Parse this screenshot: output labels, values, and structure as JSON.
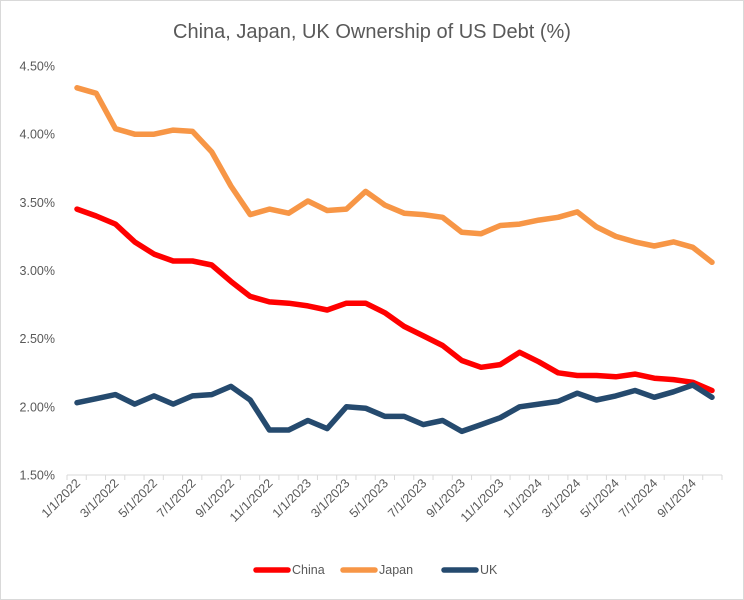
{
  "chart_data": {
    "type": "line",
    "title": "China, Japan, UK Ownership of US Debt (%)",
    "xlabel": "",
    "ylabel": "",
    "ylim": [
      0.015,
      0.045
    ],
    "y_ticks": [
      "1.50%",
      "2.00%",
      "2.50%",
      "3.00%",
      "3.50%",
      "4.00%",
      "4.50%"
    ],
    "x": [
      "1/1/2022",
      "2/1/2022",
      "3/1/2022",
      "4/1/2022",
      "5/1/2022",
      "6/1/2022",
      "7/1/2022",
      "8/1/2022",
      "9/1/2022",
      "10/1/2022",
      "11/1/2022",
      "12/1/2022",
      "1/1/2023",
      "2/1/2023",
      "3/1/2023",
      "4/1/2023",
      "5/1/2023",
      "6/1/2023",
      "7/1/2023",
      "8/1/2023",
      "9/1/2023",
      "10/1/2023",
      "11/1/2023",
      "12/1/2023",
      "1/1/2024",
      "2/1/2024",
      "3/1/2024",
      "4/1/2024",
      "5/1/2024",
      "6/1/2024",
      "7/1/2024",
      "8/1/2024",
      "9/1/2024",
      "10/1/2024"
    ],
    "x_tick_labels": [
      "1/1/2022",
      "3/1/2022",
      "5/1/2022",
      "7/1/2022",
      "9/1/2022",
      "11/1/2022",
      "1/1/2023",
      "3/1/2023",
      "5/1/2023",
      "7/1/2023",
      "9/1/2023",
      "11/1/2023",
      "1/1/2024",
      "3/1/2024",
      "5/1/2024",
      "7/1/2024",
      "9/1/2024"
    ],
    "series": [
      {
        "name": "China",
        "color": "#ff0000",
        "values": [
          0.0345,
          0.034,
          0.0334,
          0.0321,
          0.0312,
          0.0307,
          0.0307,
          0.0304,
          0.0292,
          0.0281,
          0.0277,
          0.0276,
          0.0274,
          0.0271,
          0.0276,
          0.0276,
          0.0269,
          0.0259,
          0.0252,
          0.0245,
          0.0234,
          0.0229,
          0.0231,
          0.024,
          0.0233,
          0.0225,
          0.0223,
          0.0223,
          0.0222,
          0.0224,
          0.0221,
          0.022,
          0.0218,
          0.0212
        ]
      },
      {
        "name": "Japan",
        "color": "#f79646",
        "values": [
          0.0434,
          0.043,
          0.0404,
          0.04,
          0.04,
          0.0403,
          0.0402,
          0.0387,
          0.0362,
          0.0341,
          0.0345,
          0.0342,
          0.0351,
          0.0344,
          0.0345,
          0.0358,
          0.0348,
          0.0342,
          0.0341,
          0.0339,
          0.0328,
          0.0327,
          0.0333,
          0.0334,
          0.0337,
          0.0339,
          0.0343,
          0.0332,
          0.0325,
          0.0321,
          0.0318,
          0.0321,
          0.0317,
          0.0306
        ]
      },
      {
        "name": "UK",
        "color": "#254a6e",
        "values": [
          0.0203,
          0.0206,
          0.0209,
          0.0202,
          0.0208,
          0.0202,
          0.0208,
          0.0209,
          0.0215,
          0.0205,
          0.0183,
          0.0183,
          0.019,
          0.0184,
          0.02,
          0.0199,
          0.0193,
          0.0193,
          0.0187,
          0.019,
          0.0182,
          0.0187,
          0.0192,
          0.02,
          0.0202,
          0.0204,
          0.021,
          0.0205,
          0.0208,
          0.0212,
          0.0207,
          0.0211,
          0.0216,
          0.0207
        ]
      }
    ],
    "grid": false,
    "legend": "bottom"
  }
}
